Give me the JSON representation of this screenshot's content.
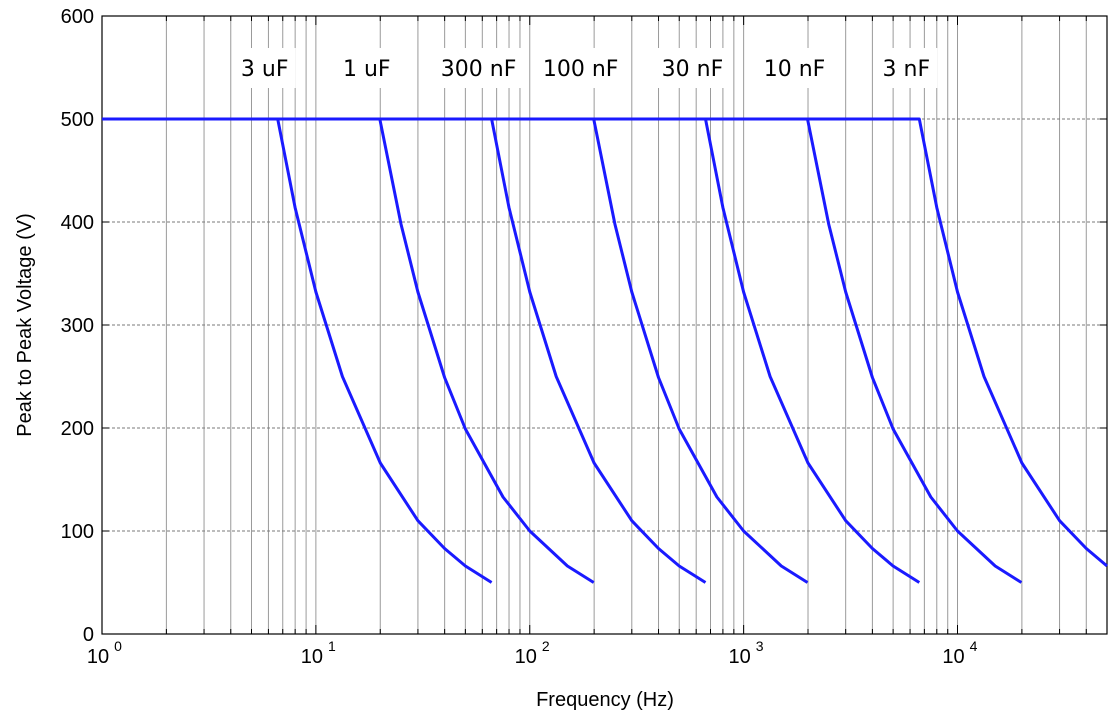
{
  "chart_data": {
    "type": "line",
    "xlabel": "Frequency (Hz)",
    "ylabel": "Peak to Peak Voltage (V)",
    "xscale": "log",
    "xlim": [
      1,
      50000
    ],
    "ylim": [
      0,
      600
    ],
    "grid": true,
    "x_ticks": [
      {
        "base": "10",
        "exp": "0"
      },
      {
        "base": "10",
        "exp": "1"
      },
      {
        "base": "10",
        "exp": "2"
      },
      {
        "base": "10",
        "exp": "3"
      },
      {
        "base": "10",
        "exp": "4"
      }
    ],
    "y_ticks": [
      "0",
      "100",
      "200",
      "300",
      "400",
      "500",
      "600"
    ],
    "series_color": "#1a1aff",
    "series": [
      {
        "name": "3 uF",
        "x": [
          1,
          6.63,
          8,
          10,
          13.3,
          20,
          30,
          40,
          50,
          66.3
        ],
        "y": [
          500,
          500,
          414,
          332,
          250,
          166,
          110,
          83,
          66,
          50
        ]
      },
      {
        "name": "1 uF",
        "x": [
          1,
          19.9,
          25,
          30,
          40,
          50,
          75,
          100,
          150,
          199
        ],
        "y": [
          500,
          500,
          398,
          332,
          249,
          199,
          133,
          100,
          66,
          50
        ]
      },
      {
        "name": "300 nF",
        "x": [
          1,
          66.3,
          80,
          100,
          133,
          200,
          300,
          400,
          500,
          663
        ],
        "y": [
          500,
          500,
          414,
          332,
          250,
          166,
          110,
          83,
          66,
          50
        ]
      },
      {
        "name": "100 nF",
        "x": [
          1,
          199,
          250,
          300,
          400,
          500,
          750,
          1000,
          1500,
          1990
        ],
        "y": [
          500,
          500,
          398,
          332,
          249,
          199,
          133,
          100,
          66,
          50
        ]
      },
      {
        "name": "30 nF",
        "x": [
          1,
          663,
          800,
          1000,
          1330,
          2000,
          3000,
          4000,
          5000,
          6630
        ],
        "y": [
          500,
          500,
          414,
          332,
          250,
          166,
          110,
          83,
          66,
          50
        ]
      },
      {
        "name": "10 nF",
        "x": [
          1,
          1990,
          2500,
          3000,
          4000,
          5000,
          7500,
          10000,
          15000,
          19900
        ],
        "y": [
          500,
          500,
          398,
          332,
          249,
          199,
          133,
          100,
          66,
          50
        ]
      },
      {
        "name": "3 nF",
        "x": [
          1,
          6630,
          8000,
          10000,
          13300,
          20000,
          30000,
          40000,
          50000
        ],
        "y": [
          500,
          500,
          414,
          332,
          250,
          166,
          110,
          83,
          66
        ]
      }
    ]
  }
}
